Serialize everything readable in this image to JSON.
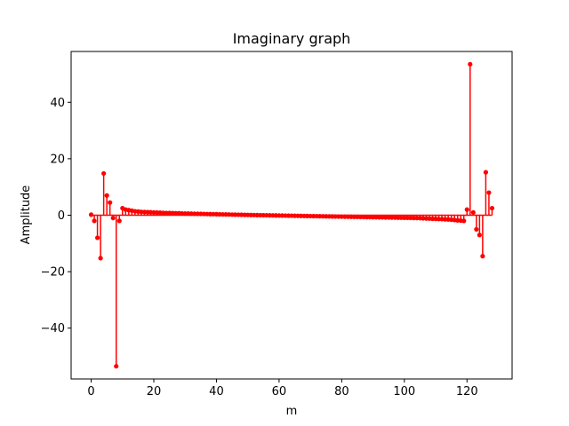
{
  "chart_data": {
    "type": "stem",
    "title": "Imaginary graph",
    "xlabel": "m",
    "ylabel": "Amplitude",
    "xlim": [
      -6.4,
      134.4
    ],
    "ylim": [
      -58,
      58
    ],
    "xticks": [
      0,
      20,
      40,
      60,
      80,
      100,
      120
    ],
    "yticks": [
      -40,
      -20,
      0,
      20,
      40
    ],
    "xtick_labels": [
      "0",
      "20",
      "40",
      "60",
      "80",
      "100",
      "120"
    ],
    "ytick_labels": [
      "−40",
      "−20",
      "0",
      "20",
      "40"
    ],
    "grid": false,
    "series": [
      {
        "color": "#ff0000",
        "x": [
          0,
          1,
          2,
          3,
          4,
          5,
          6,
          7,
          8,
          9,
          10,
          11,
          12,
          13,
          14,
          15,
          16,
          17,
          18,
          19,
          20,
          21,
          22,
          23,
          24,
          25,
          26,
          27,
          28,
          29,
          30,
          31,
          32,
          33,
          34,
          35,
          36,
          37,
          38,
          39,
          40,
          41,
          42,
          43,
          44,
          45,
          46,
          47,
          48,
          49,
          50,
          51,
          52,
          53,
          54,
          55,
          56,
          57,
          58,
          59,
          60,
          61,
          62,
          63,
          64,
          65,
          66,
          67,
          68,
          69,
          70,
          71,
          72,
          73,
          74,
          75,
          76,
          77,
          78,
          79,
          80,
          81,
          82,
          83,
          84,
          85,
          86,
          87,
          88,
          89,
          90,
          91,
          92,
          93,
          94,
          95,
          96,
          97,
          98,
          99,
          100,
          101,
          102,
          103,
          104,
          105,
          106,
          107,
          108,
          109,
          110,
          111,
          112,
          113,
          114,
          115,
          116,
          117,
          118,
          119,
          120,
          121,
          122,
          123,
          124,
          125,
          126,
          127,
          128
        ],
        "y": [
          0.2,
          -2,
          -8,
          -15.2,
          14.8,
          7,
          4.5,
          -1,
          -53.5,
          -2,
          2.5,
          2,
          1.8,
          1.6,
          1.4,
          1.3,
          1.2,
          1.15,
          1.1,
          1.05,
          1,
          0.95,
          0.9,
          0.85,
          0.8,
          0.78,
          0.75,
          0.72,
          0.7,
          0.65,
          0.6,
          0.58,
          0.55,
          0.52,
          0.5,
          0.48,
          0.45,
          0.42,
          0.4,
          0.38,
          0.35,
          0.32,
          0.3,
          0.28,
          0.25,
          0.22,
          0.2,
          0.18,
          0.15,
          0.12,
          0.1,
          0.08,
          0.06,
          0.04,
          0.02,
          0,
          -0.02,
          -0.04,
          -0.06,
          -0.08,
          -0.1,
          -0.12,
          -0.14,
          -0.16,
          -0.18,
          -0.2,
          -0.22,
          -0.24,
          -0.26,
          -0.28,
          -0.3,
          -0.32,
          -0.34,
          -0.36,
          -0.38,
          -0.4,
          -0.42,
          -0.44,
          -0.46,
          -0.48,
          -0.5,
          -0.52,
          -0.54,
          -0.56,
          -0.58,
          -0.6,
          -0.62,
          -0.64,
          -0.66,
          -0.68,
          -0.7,
          -0.72,
          -0.74,
          -0.76,
          -0.78,
          -0.8,
          -0.82,
          -0.84,
          -0.86,
          -0.88,
          -0.9,
          -0.92,
          -0.95,
          -0.98,
          -1,
          -1.05,
          -1.1,
          -1.15,
          -1.2,
          -1.25,
          -1.3,
          -1.35,
          -1.4,
          -1.45,
          -1.5,
          -1.6,
          -1.7,
          -1.8,
          -1.9,
          -2,
          2,
          53.5,
          1,
          -5,
          -7,
          -14.5,
          15.2,
          8,
          2.5
        ]
      }
    ]
  }
}
